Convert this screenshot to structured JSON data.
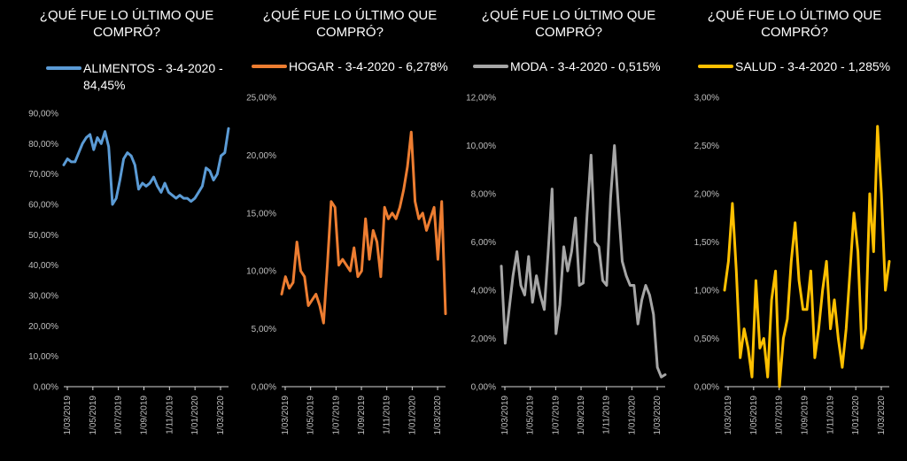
{
  "chart_data": [
    {
      "type": "line",
      "title": "¿QUÉ FUE LO ÚLTIMO QUE COMPRÓ?",
      "legend": "ALIMENTOS - 3-4-2020 - 84,45%",
      "series": [
        {
          "name": "ALIMENTOS - 3-4-2020 - 84,45%",
          "color": "#5b9bd5",
          "values": [
            73,
            75,
            74,
            74,
            77,
            80,
            82,
            83,
            78,
            82,
            80,
            84,
            79,
            60,
            62,
            68,
            75,
            77,
            76,
            73,
            65,
            67,
            66,
            67,
            69,
            66,
            64,
            67,
            64,
            63,
            62,
            63,
            62,
            62,
            61,
            62,
            64,
            66,
            72,
            71,
            68,
            70,
            76,
            77,
            85
          ]
        }
      ],
      "x_tick_labels": [
        "1/03/2019",
        "1/05/2019",
        "1/07/2019",
        "1/09/2019",
        "1/11/2019",
        "1/01/2020",
        "1/03/2020"
      ],
      "y_tick_labels": [
        "0,00%",
        "10,00%",
        "20,00%",
        "30,00%",
        "40,00%",
        "50,00%",
        "60,00%",
        "70,00%",
        "80,00%",
        "90,00%"
      ],
      "ylim": [
        0,
        90
      ]
    },
    {
      "type": "line",
      "title": "¿QUÉ FUE LO ÚLTIMO QUE COMPRÓ?",
      "legend": "HOGAR - 3-4-2020 - 6,278%",
      "series": [
        {
          "name": "HOGAR - 3-4-2020 - 6,278%",
          "color": "#ed7d31",
          "values": [
            8,
            9.5,
            8.5,
            9,
            12.5,
            10,
            9.5,
            7,
            7.5,
            8,
            7,
            5.5,
            10.5,
            16,
            15.5,
            10.5,
            11,
            10.5,
            10,
            12,
            9.5,
            10,
            14.5,
            11,
            13.5,
            12.5,
            9.5,
            15.5,
            14.5,
            15,
            14.5,
            15.5,
            17,
            19,
            22,
            16,
            14.5,
            15,
            13.5,
            14.5,
            15.5,
            11,
            16,
            6.3
          ]
        }
      ],
      "x_tick_labels": [
        "1/03/2019",
        "1/05/2019",
        "1/07/2019",
        "1/09/2019",
        "1/11/2019",
        "1/01/2020",
        "1/03/2020"
      ],
      "y_tick_labels": [
        "0,00%",
        "5,00%",
        "10,00%",
        "15,00%",
        "20,00%",
        "25,00%"
      ],
      "ylim": [
        0,
        25
      ]
    },
    {
      "type": "line",
      "title": "¿QUÉ FUE LO ÚLTIMO QUE COMPRÓ?",
      "legend": "MODA - 3-4-2020 - 0,515%",
      "series": [
        {
          "name": "MODA - 3-4-2020 - 0,515%",
          "color": "#a6a6a6",
          "values": [
            5,
            1.8,
            3.2,
            4.6,
            5.6,
            4.2,
            3.8,
            5.4,
            3.5,
            4.6,
            3.8,
            3.2,
            5.6,
            8.2,
            2.2,
            3.4,
            5.8,
            4.8,
            5.6,
            7,
            4.2,
            4.3,
            7.2,
            9.6,
            6,
            5.8,
            4.4,
            4.2,
            7.8,
            10,
            7.5,
            5.2,
            4.6,
            4.2,
            4.2,
            2.6,
            3.6,
            4.2,
            3.8,
            3,
            0.8,
            0.4,
            0.5
          ]
        }
      ],
      "x_tick_labels": [
        "1/03/2019",
        "1/05/2019",
        "1/07/2019",
        "1/09/2019",
        "1/11/2019",
        "1/01/2020",
        "1/03/2020"
      ],
      "y_tick_labels": [
        "0,00%",
        "2,00%",
        "4,00%",
        "6,00%",
        "8,00%",
        "10,00%",
        "12,00%"
      ],
      "ylim": [
        0,
        12
      ]
    },
    {
      "type": "line",
      "title": "¿QUÉ FUE LO ÚLTIMO QUE COMPRÓ?",
      "legend": "SALUD - 3-4-2020 - 1,285%",
      "series": [
        {
          "name": "SALUD - 3-4-2020 - 1,285%",
          "color": "#ffc000",
          "values": [
            1,
            1.3,
            1.9,
            1.2,
            0.3,
            0.6,
            0.4,
            0.1,
            1.1,
            0.4,
            0.5,
            0.1,
            0.9,
            1.2,
            0,
            0.5,
            0.7,
            1.3,
            1.7,
            1.1,
            0.8,
            0.8,
            1.2,
            0.3,
            0.6,
            1,
            1.3,
            0.6,
            0.9,
            0.5,
            0.2,
            0.6,
            1.2,
            1.8,
            1.4,
            0.4,
            0.6,
            2,
            1.4,
            2.7,
            2,
            1,
            1.3
          ]
        }
      ],
      "x_tick_labels": [
        "1/03/2019",
        "1/05/2019",
        "1/07/2019",
        "1/09/2019",
        "1/11/2019",
        "1/01/2020",
        "1/03/2020"
      ],
      "y_tick_labels": [
        "0,00%",
        "0,50%",
        "1,00%",
        "1,50%",
        "2,00%",
        "2,50%",
        "3,00%"
      ],
      "ylim": [
        0,
        3
      ]
    }
  ]
}
